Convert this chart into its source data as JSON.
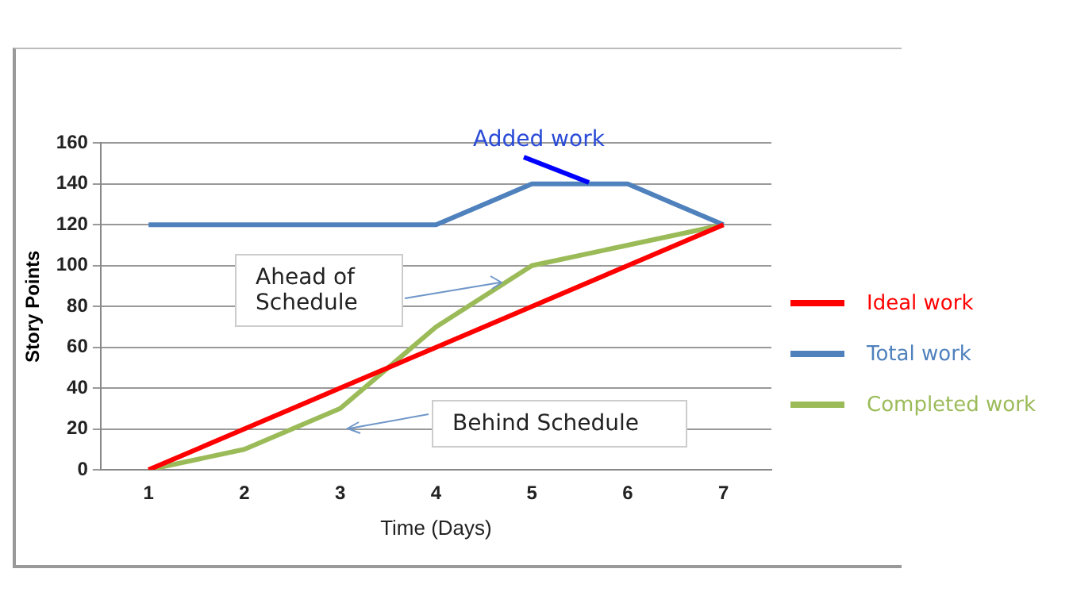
{
  "chart_data": {
    "type": "line",
    "xlabel": "Time (Days)",
    "ylabel": "Story Points",
    "categories": [
      "1",
      "2",
      "3",
      "4",
      "5",
      "6",
      "7"
    ],
    "series": [
      {
        "name": "Ideal work",
        "color": "#ff0000",
        "values": [
          0,
          20,
          40,
          60,
          80,
          100,
          120
        ]
      },
      {
        "name": "Total work",
        "color": "#4f81bd",
        "values": [
          120,
          120,
          120,
          120,
          140,
          140,
          120
        ]
      },
      {
        "name": "Completed work",
        "color": "#9bbb59",
        "values": [
          0,
          10,
          30,
          70,
          100,
          110,
          120
        ]
      }
    ],
    "ylim": [
      0,
      160
    ],
    "yticks": [
      0,
      20,
      40,
      60,
      80,
      100,
      120,
      140,
      160
    ],
    "grid": "y",
    "legend": "right",
    "marker": "none",
    "annotations": [
      "Added work",
      "Ahead of Schedule",
      "Behind Schedule"
    ]
  }
}
